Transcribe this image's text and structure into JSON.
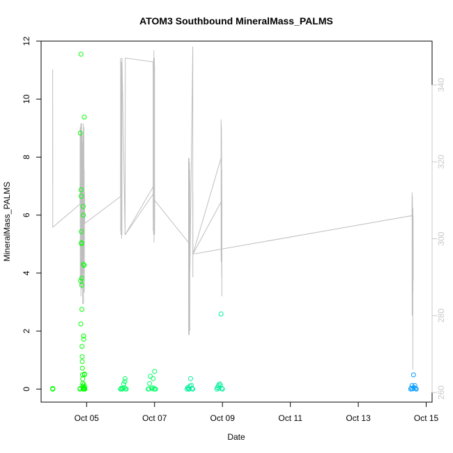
{
  "chart_data": {
    "type": "scatter",
    "title": "ATOM3 Southbound MineralMass_PALMS",
    "xlabel": "Date",
    "ylabel": "MineralMass_PALMS",
    "xlim": [
      "2017-10-03T15:50",
      "2017-10-15T04:10"
    ],
    "ylim": [
      -0.45,
      12.0
    ],
    "y2lim": [
      257.5,
      351.4
    ],
    "x_ticks": [
      {
        "at": "2017-10-05",
        "label": "Oct 05"
      },
      {
        "at": "2017-10-07",
        "label": "Oct 07"
      },
      {
        "at": "2017-10-09",
        "label": "Oct 09"
      },
      {
        "at": "2017-10-11",
        "label": "Oct 11"
      },
      {
        "at": "2017-10-13",
        "label": "Oct 13"
      },
      {
        "at": "2017-10-15",
        "label": "Oct 15"
      }
    ],
    "y_ticks": [
      0,
      2,
      4,
      6,
      8,
      10,
      12
    ],
    "y2_ticks": [
      260,
      280,
      300,
      320,
      340
    ],
    "grid": false,
    "legend": "none",
    "colors": {
      "line": "#bebebe",
      "right_axis": "#c8c8c8",
      "points_early": "#00ff00",
      "points_mid": "#00ff66",
      "points_late": "#00e8a0",
      "points_end": "#0099ff"
    },
    "scatter_series": [
      {
        "color": "#00ff00",
        "points": [
          [
            "2017-10-04T00:00",
            0
          ],
          [
            "2017-10-04T00:02",
            0.02
          ],
          [
            "2017-10-04T00:04",
            0
          ],
          [
            "2017-10-04T00:06",
            0.01
          ],
          [
            "2017-10-04T19:15",
            0
          ],
          [
            "2017-10-04T19:25",
            0.02
          ],
          [
            "2017-10-04T19:35",
            8.83
          ],
          [
            "2017-10-04T19:45",
            3.73
          ],
          [
            "2017-10-04T19:55",
            2.25
          ],
          [
            "2017-10-04T20:00",
            11.55
          ],
          [
            "2017-10-04T20:05",
            6.87
          ],
          [
            "2017-10-04T20:10",
            6.65
          ],
          [
            "2017-10-04T20:15",
            5.43
          ],
          [
            "2017-10-04T20:20",
            5.05
          ],
          [
            "2017-10-04T20:25",
            5.01
          ],
          [
            "2017-10-04T20:30",
            3.82
          ],
          [
            "2017-10-04T20:35",
            3.58
          ],
          [
            "2017-10-04T20:40",
            2.75
          ],
          [
            "2017-10-04T20:45",
            1.47
          ],
          [
            "2017-10-04T20:50",
            1.12
          ],
          [
            "2017-10-04T20:55",
            0.95
          ],
          [
            "2017-10-04T21:00",
            0.72
          ],
          [
            "2017-10-04T21:05",
            0.49
          ],
          [
            "2017-10-04T21:10",
            0.35
          ],
          [
            "2017-10-04T21:15",
            0.2
          ],
          [
            "2017-10-04T21:20",
            0.1
          ],
          [
            "2017-10-04T21:25",
            0.05
          ],
          [
            "2017-10-04T21:30",
            0
          ],
          [
            "2017-10-04T21:35",
            6.3
          ],
          [
            "2017-10-04T21:40",
            6.0
          ],
          [
            "2017-10-04T21:45",
            4.3
          ],
          [
            "2017-10-04T21:50",
            1.83
          ],
          [
            "2017-10-04T21:55",
            1.72
          ],
          [
            "2017-10-04T22:00",
            0.15
          ],
          [
            "2017-10-04T22:05",
            0.02
          ],
          [
            "2017-10-04T22:10",
            0
          ],
          [
            "2017-10-04T22:15",
            4.27
          ],
          [
            "2017-10-04T22:20",
            9.38
          ],
          [
            "2017-10-04T22:25",
            0.5
          ],
          [
            "2017-10-04T22:30",
            0.52
          ],
          [
            "2017-10-04T22:35",
            0.08
          ],
          [
            "2017-10-04T22:40",
            0.01
          ],
          [
            "2017-10-04T22:45",
            0
          ]
        ]
      },
      {
        "color": "#00ff66",
        "points": [
          [
            "2017-10-06T00:00",
            0
          ],
          [
            "2017-10-06T00:20",
            0.02
          ],
          [
            "2017-10-06T01:00",
            0
          ],
          [
            "2017-10-06T01:40",
            0.03
          ],
          [
            "2017-10-06T02:10",
            0.18
          ],
          [
            "2017-10-06T02:40",
            0.05
          ],
          [
            "2017-10-06T03:00",
            0.26
          ],
          [
            "2017-10-06T03:10",
            0.36
          ],
          [
            "2017-10-06T03:30",
            0.01
          ],
          [
            "2017-10-06T04:00",
            0
          ],
          [
            "2017-10-06T19:30",
            0
          ],
          [
            "2017-10-06T20:00",
            0.01
          ],
          [
            "2017-10-06T20:30",
            0.19
          ],
          [
            "2017-10-06T21:00",
            0.44
          ],
          [
            "2017-10-06T22:00",
            0.02
          ],
          [
            "2017-10-06T22:40",
            0.04
          ],
          [
            "2017-10-06T23:00",
            0.36
          ],
          [
            "2017-10-06T23:40",
            0
          ],
          [
            "2017-10-07T00:00",
            0.61
          ],
          [
            "2017-10-07T00:20",
            0.01
          ],
          [
            "2017-10-07T00:40",
            0
          ]
        ]
      },
      {
        "color": "#00ef99",
        "points": [
          [
            "2017-10-07T23:00",
            0
          ],
          [
            "2017-10-07T23:30",
            0.05
          ],
          [
            "2017-10-08T00:00",
            0.01
          ],
          [
            "2017-10-08T00:30",
            0
          ],
          [
            "2017-10-08T01:00",
            0.1
          ],
          [
            "2017-10-08T01:30",
            0.36
          ],
          [
            "2017-10-08T02:00",
            0.13
          ],
          [
            "2017-10-08T02:30",
            0.02
          ],
          [
            "2017-10-08T03:00",
            0
          ],
          [
            "2017-10-08T20:00",
            0
          ],
          [
            "2017-10-08T20:30",
            0.05
          ],
          [
            "2017-10-08T21:00",
            0.12
          ],
          [
            "2017-10-08T21:30",
            0.02
          ],
          [
            "2017-10-08T22:00",
            0.18
          ],
          [
            "2017-10-08T22:30",
            0.14
          ],
          [
            "2017-10-08T23:00",
            2.59
          ],
          [
            "2017-10-08T23:30",
            0.02
          ],
          [
            "2017-10-09T00:00",
            0
          ]
        ]
      },
      {
        "color": "#0099ff",
        "points": [
          [
            "2017-10-14T13:00",
            0
          ],
          [
            "2017-10-14T13:30",
            0.03
          ],
          [
            "2017-10-14T14:00",
            0.12
          ],
          [
            "2017-10-14T14:30",
            0.01
          ],
          [
            "2017-10-14T15:00",
            0.49
          ],
          [
            "2017-10-14T15:30",
            0.05
          ],
          [
            "2017-10-14T16:00",
            0.12
          ],
          [
            "2017-10-14T16:30",
            0.02
          ],
          [
            "2017-10-14T17:00",
            0
          ]
        ]
      }
    ],
    "line_series": {
      "axis": "right",
      "color": "#bebebe",
      "points": [
        [
          "2017-10-04T00:00",
          320
        ],
        [
          "2017-10-04T00:01",
          331
        ],
        [
          "2017-10-04T00:02",
          344
        ],
        [
          "2017-10-04T00:03",
          313
        ],
        [
          "2017-10-04T00:04",
          326
        ],
        [
          "2017-10-04T00:05",
          303
        ],
        [
          "2017-10-04T19:20",
          309
        ],
        [
          "2017-10-04T19:25",
          329
        ],
        [
          "2017-10-04T19:30",
          288
        ],
        [
          "2017-10-04T19:35",
          324
        ],
        [
          "2017-10-04T19:40",
          300
        ],
        [
          "2017-10-04T19:45",
          321
        ],
        [
          "2017-10-04T19:50",
          290
        ],
        [
          "2017-10-04T19:55",
          330
        ],
        [
          "2017-10-04T20:00",
          285
        ],
        [
          "2017-10-04T20:05",
          325
        ],
        [
          "2017-10-04T20:10",
          293
        ],
        [
          "2017-10-04T20:15",
          318
        ],
        [
          "2017-10-04T20:20",
          300
        ],
        [
          "2017-10-04T20:25",
          330
        ],
        [
          "2017-10-04T20:30",
          287
        ],
        [
          "2017-10-04T20:35",
          316
        ],
        [
          "2017-10-04T20:40",
          296
        ],
        [
          "2017-10-04T20:45",
          328
        ],
        [
          "2017-10-04T20:50",
          289
        ],
        [
          "2017-10-04T20:55",
          321
        ],
        [
          "2017-10-04T21:00",
          294
        ],
        [
          "2017-10-04T21:05",
          325
        ],
        [
          "2017-10-04T21:10",
          283
        ],
        [
          "2017-10-04T21:15",
          322
        ],
        [
          "2017-10-04T21:20",
          296
        ],
        [
          "2017-10-04T21:25",
          327
        ],
        [
          "2017-10-04T21:30",
          291
        ],
        [
          "2017-10-04T21:35",
          321
        ],
        [
          "2017-10-04T21:40",
          312
        ],
        [
          "2017-10-04T21:45",
          330
        ],
        [
          "2017-10-04T21:50",
          283
        ],
        [
          "2017-10-04T21:55",
          321
        ],
        [
          "2017-10-04T22:00",
          305
        ],
        [
          "2017-10-04T22:05",
          329
        ],
        [
          "2017-10-04T22:10",
          297
        ],
        [
          "2017-10-04T22:15",
          318
        ],
        [
          "2017-10-04T22:20",
          286
        ],
        [
          "2017-10-04T22:30",
          312
        ],
        [
          "2017-10-04T22:40",
          304
        ],
        [
          "2017-10-06T00:00",
          311
        ],
        [
          "2017-10-06T00:03",
          347
        ],
        [
          "2017-10-06T00:06",
          302
        ],
        [
          "2017-10-06T00:09",
          344
        ],
        [
          "2017-10-06T00:12",
          305
        ],
        [
          "2017-10-06T00:15",
          341
        ],
        [
          "2017-10-06T00:18",
          301
        ],
        [
          "2017-10-06T00:21",
          346
        ],
        [
          "2017-10-06T00:24",
          310
        ],
        [
          "2017-10-06T00:27",
          340
        ],
        [
          "2017-10-06T00:30",
          302
        ],
        [
          "2017-10-06T00:33",
          343
        ],
        [
          "2017-10-06T00:36",
          307
        ],
        [
          "2017-10-06T00:39",
          346
        ],
        [
          "2017-10-06T00:42",
          300
        ],
        [
          "2017-10-06T00:45",
          338
        ],
        [
          "2017-10-06T00:48",
          304
        ],
        [
          "2017-10-06T00:51",
          342
        ],
        [
          "2017-10-06T00:54",
          301
        ],
        [
          "2017-10-06T00:57",
          347
        ],
        [
          "2017-10-06T03:10",
          301
        ],
        [
          "2017-10-06T03:20",
          347
        ],
        [
          "2017-10-06T23:00",
          346
        ],
        [
          "2017-10-06T23:01",
          305
        ],
        [
          "2017-10-06T23:03",
          337
        ],
        [
          "2017-10-06T23:05",
          302
        ],
        [
          "2017-10-06T23:07",
          340
        ],
        [
          "2017-10-06T23:09",
          308
        ],
        [
          "2017-10-06T23:11",
          336
        ],
        [
          "2017-10-06T23:13",
          303
        ],
        [
          "2017-10-06T23:15",
          341
        ],
        [
          "2017-10-06T23:17",
          305
        ],
        [
          "2017-10-06T23:19",
          347
        ],
        [
          "2017-10-06T23:21",
          301
        ],
        [
          "2017-10-06T23:23",
          345
        ],
        [
          "2017-10-06T23:25",
          307
        ],
        [
          "2017-10-06T23:27",
          343
        ],
        [
          "2017-10-06T23:29",
          302
        ],
        [
          "2017-10-06T23:31",
          349
        ],
        [
          "2017-10-06T23:33",
          304
        ],
        [
          "2017-10-06T23:35",
          338
        ],
        [
          "2017-10-06T23:37",
          299
        ],
        [
          "2017-10-06T23:39",
          344
        ],
        [
          "2017-10-06T23:41",
          302
        ],
        [
          "2017-10-06T23:43",
          336
        ],
        [
          "2017-10-06T23:45",
          312
        ],
        [
          "2017-10-06T03:12",
          301
        ],
        [
          "2017-10-06T23:50",
          314
        ],
        [
          "2017-10-06T23:52",
          347
        ],
        [
          "2017-10-06T23:54",
          308
        ],
        [
          "2017-10-06T23:56",
          340
        ],
        [
          "2017-10-06T23:58",
          309
        ],
        [
          "2017-10-07T00:00",
          345
        ],
        [
          "2017-10-07T00:02",
          301
        ],
        [
          "2017-10-07T00:04",
          310
        ],
        [
          "2017-10-08T00:00",
          299
        ],
        [
          "2017-10-08T00:02",
          321
        ],
        [
          "2017-10-08T00:05",
          275
        ],
        [
          "2017-10-08T00:08",
          316
        ],
        [
          "2017-10-08T00:11",
          280
        ],
        [
          "2017-10-08T00:14",
          318
        ],
        [
          "2017-10-08T00:17",
          277
        ],
        [
          "2017-10-08T00:20",
          321
        ],
        [
          "2017-10-08T00:23",
          283
        ],
        [
          "2017-10-08T00:26",
          319
        ],
        [
          "2017-10-08T00:29",
          275
        ],
        [
          "2017-10-08T00:32",
          316
        ],
        [
          "2017-10-08T00:35",
          279
        ],
        [
          "2017-10-08T00:38",
          320
        ],
        [
          "2017-10-08T00:41",
          284
        ],
        [
          "2017-10-08T00:44",
          315
        ],
        [
          "2017-10-08T00:47",
          282
        ],
        [
          "2017-10-08T00:50",
          318
        ],
        [
          "2017-10-08T00:53",
          276
        ],
        [
          "2017-10-08T00:56",
          315
        ],
        [
          "2017-10-08T00:59",
          291
        ],
        [
          "2017-10-08T03:00",
          350
        ],
        [
          "2017-10-08T03:02",
          307
        ],
        [
          "2017-10-08T03:04",
          290
        ],
        [
          "2017-10-08T03:06",
          312
        ],
        [
          "2017-10-08T03:08",
          296
        ],
        [
          "2017-10-08T23:00",
          321
        ],
        [
          "2017-10-08T23:02",
          331
        ],
        [
          "2017-10-08T23:04",
          294
        ],
        [
          "2017-10-08T23:06",
          328
        ],
        [
          "2017-10-08T23:08",
          300
        ],
        [
          "2017-10-08T23:10",
          330
        ],
        [
          "2017-10-08T23:12",
          305
        ],
        [
          "2017-10-08T23:14",
          327
        ],
        [
          "2017-10-08T23:16",
          299
        ],
        [
          "2017-10-08T23:18",
          329
        ],
        [
          "2017-10-08T23:20",
          296
        ],
        [
          "2017-10-08T23:22",
          326
        ],
        [
          "2017-10-08T23:24",
          303
        ],
        [
          "2017-10-08T23:26",
          322
        ],
        [
          "2017-10-08T23:28",
          290
        ],
        [
          "2017-10-08T23:30",
          318
        ],
        [
          "2017-10-08T23:32",
          295
        ],
        [
          "2017-10-08T23:34",
          314
        ],
        [
          "2017-10-08T23:36",
          285
        ],
        [
          "2017-10-08T23:38",
          310
        ],
        [
          "2017-10-08T03:08",
          296
        ],
        [
          "2017-10-14T14:00",
          306
        ],
        [
          "2017-10-14T14:02",
          312
        ],
        [
          "2017-10-14T14:04",
          280
        ],
        [
          "2017-10-14T14:06",
          310
        ],
        [
          "2017-10-14T14:08",
          300
        ],
        [
          "2017-10-14T14:10",
          308
        ],
        [
          "2017-10-14T14:12",
          302
        ],
        [
          "2017-10-14T14:14",
          309
        ],
        [
          "2017-10-14T14:16",
          297
        ],
        [
          "2017-10-14T14:18",
          311
        ],
        [
          "2017-10-14T14:20",
          295
        ],
        [
          "2017-10-14T14:22",
          305
        ],
        [
          "2017-10-14T14:24",
          290
        ],
        [
          "2017-10-14T14:26",
          306
        ],
        [
          "2017-10-14T14:28",
          285
        ],
        [
          "2017-10-14T14:30",
          300
        ],
        [
          "2017-10-14T14:32",
          266
        ],
        [
          "2017-10-14T14:34",
          290
        ],
        [
          "2017-10-14T14:36",
          300
        ],
        [
          "2017-10-14T14:38",
          308
        ],
        [
          "2017-10-14T14:40",
          286
        ],
        [
          "2017-10-14T14:42",
          304
        ],
        [
          "2017-10-14T14:44",
          292
        ],
        [
          "2017-10-14T14:46",
          306
        ],
        [
          "2017-10-14T14:48",
          289
        ],
        [
          "2017-10-14T14:50",
          300
        ]
      ]
    }
  }
}
